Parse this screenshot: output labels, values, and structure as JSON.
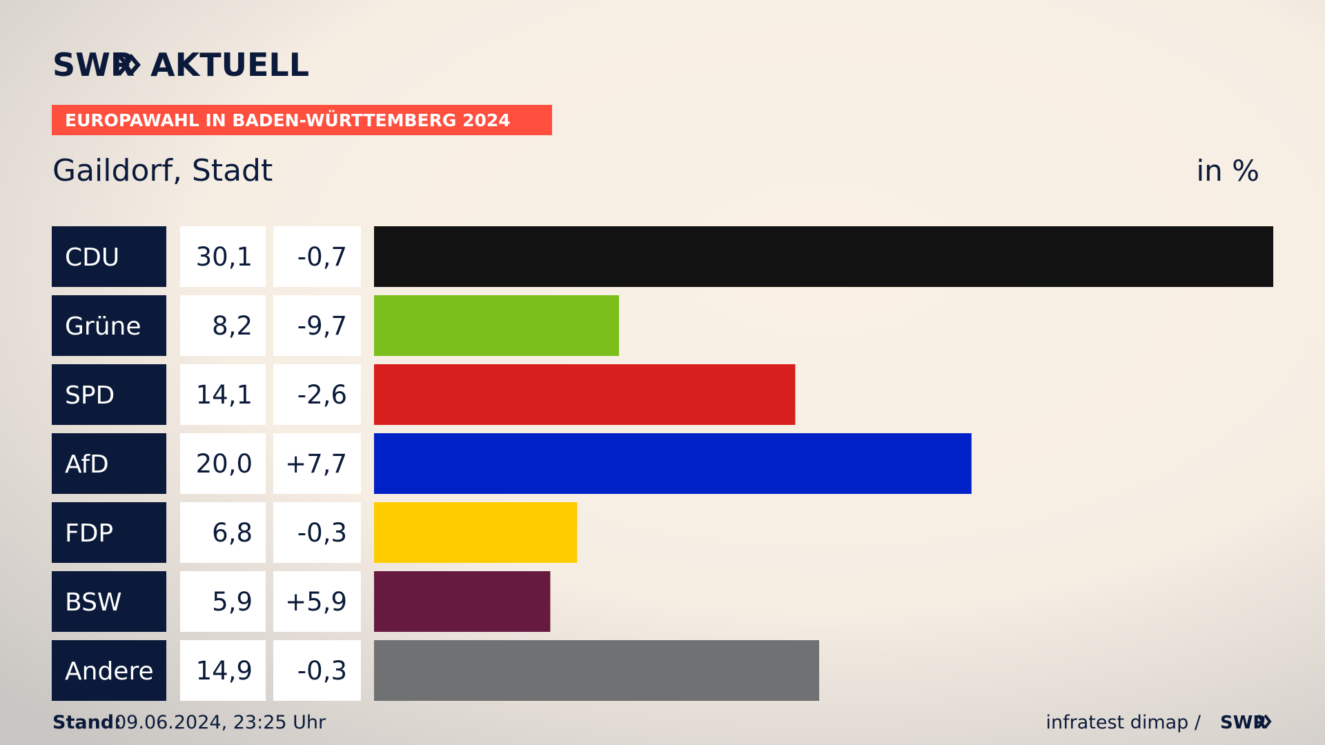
{
  "brand": {
    "name": "SWR",
    "product": "AKTUELL"
  },
  "chart_data": {
    "type": "bar",
    "banner": "EUROPAWAHL IN BADEN-WÜRTTEMBERG 2024",
    "title": "Gaildorf, Stadt",
    "unit": "in %",
    "categories": [
      "CDU",
      "Grüne",
      "SPD",
      "AfD",
      "FDP",
      "BSW",
      "Andere"
    ],
    "values": [
      30.1,
      8.2,
      14.1,
      20.0,
      6.8,
      5.9,
      14.9
    ],
    "value_labels": [
      "30,1",
      "8,2",
      "14,1",
      "20,0",
      "6,8",
      "5,9",
      "14,9"
    ],
    "changes": [
      -0.7,
      -9.7,
      -2.6,
      7.7,
      -0.3,
      5.9,
      -0.3
    ],
    "change_labels": [
      "-0,7",
      "-9,7",
      "-2,6",
      "+7,7",
      "-0,3",
      "+5,9",
      "-0,3"
    ],
    "colors": [
      "#121212",
      "#7abf1c",
      "#d71f1d",
      "#0021c8",
      "#ffcc00",
      "#661a3f",
      "#707173"
    ],
    "xlim": [
      0,
      30.1
    ]
  },
  "footer": {
    "stand_label": "Stand:",
    "stand": "09.06.2024, 23:25 Uhr",
    "source": "infratest dimap /",
    "source_brand": "SWR"
  }
}
